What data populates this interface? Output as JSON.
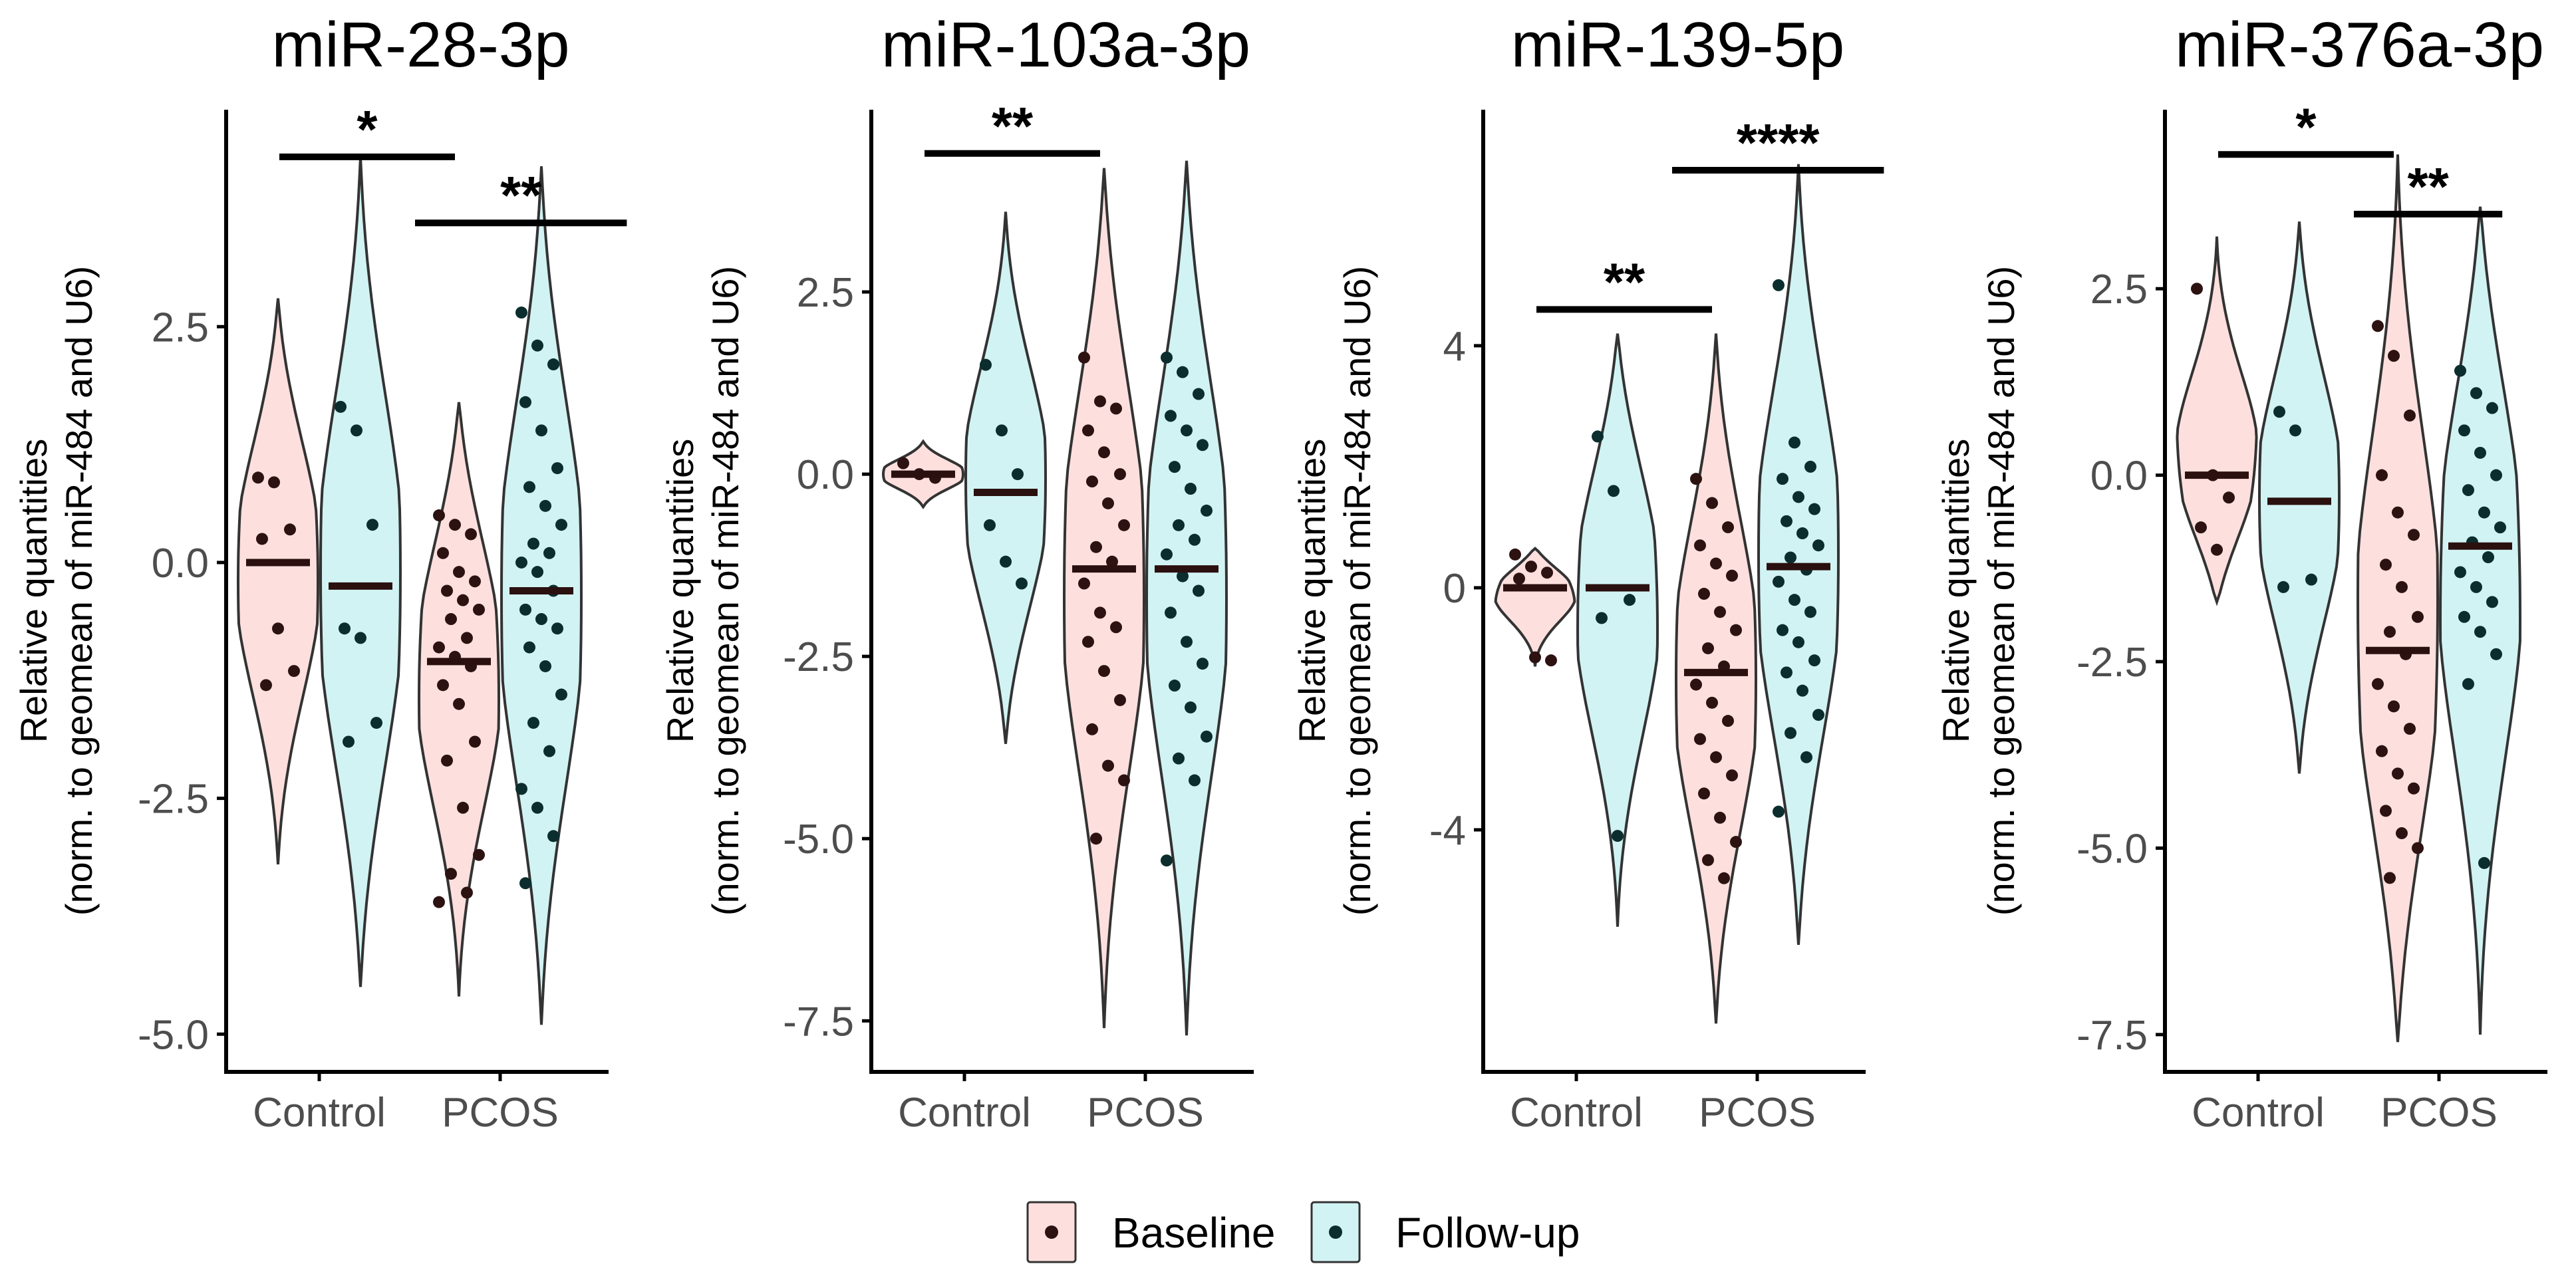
{
  "legend": {
    "items": [
      {
        "label": "Baseline",
        "fill": "#fde0de",
        "dot": "#2d1212"
      },
      {
        "label": "Follow-up",
        "fill": "#d2f3f3",
        "dot": "#0b2d2d"
      }
    ]
  },
  "colors": {
    "baseline_fill": "#fde0de",
    "followup_fill": "#d2f3f3",
    "baseline_dot": "#2d1212",
    "followup_dot": "#0b2d2d",
    "median": "#2b1010"
  },
  "chart_data": [
    {
      "type": "violin",
      "title": "miR-28-3p",
      "ylabel_line1": "Relative quantities",
      "ylabel_line2": "(norm. to geomean of miR-484 and U6)",
      "categories": [
        "Control",
        "PCOS"
      ],
      "ylim": [
        -5.4,
        4.8
      ],
      "yticks": [
        2.5,
        0.0,
        -2.5,
        -5.0
      ],
      "ytick_labels": [
        "2.5",
        "0.0",
        "-2.5",
        "-5.0"
      ],
      "series": [
        {
          "name": "Baseline",
          "groups": [
            {
              "category": "Control",
              "median": 0.0,
              "range": [
                -3.2,
                2.8
              ],
              "points": [
                0.9,
                0.85,
                0.35,
                0.25,
                -0.7,
                -1.15,
                -1.3
              ]
            },
            {
              "category": "PCOS",
              "median": -1.05,
              "range": [
                -4.6,
                1.7
              ],
              "points": [
                0.5,
                0.4,
                0.3,
                0.1,
                -0.1,
                -0.2,
                -0.3,
                -0.4,
                -0.5,
                -0.6,
                -0.8,
                -0.9,
                -1.0,
                -1.1,
                -1.3,
                -1.5,
                -1.9,
                -2.1,
                -2.6,
                -3.1,
                -3.3,
                -3.5,
                -3.6
              ]
            }
          ]
        },
        {
          "name": "Follow-up",
          "groups": [
            {
              "category": "Control",
              "median": -0.25,
              "range": [
                -4.5,
                4.3
              ],
              "points": [
                1.65,
                1.4,
                0.4,
                -0.7,
                -0.8,
                -1.7,
                -1.9
              ]
            },
            {
              "category": "PCOS",
              "median": -0.3,
              "range": [
                -4.9,
                4.2
              ],
              "points": [
                2.65,
                2.3,
                2.1,
                1.7,
                1.4,
                1.0,
                0.8,
                0.6,
                0.4,
                0.2,
                0.1,
                0.0,
                -0.1,
                -0.3,
                -0.5,
                -0.6,
                -0.7,
                -0.9,
                -1.1,
                -1.4,
                -1.7,
                -2.0,
                -2.4,
                -2.6,
                -2.9,
                -3.4
              ]
            }
          ]
        }
      ],
      "significance": [
        {
          "label": "*",
          "x0": 1,
          "x1": 1.75,
          "y": 4.3
        },
        {
          "label": "**",
          "x0": 1.75,
          "x1": 2.7,
          "y": 3.6
        }
      ]
    },
    {
      "type": "violin",
      "title": "miR-103a-3p",
      "ylabel_line1": "Relative quantities",
      "ylabel_line2": "(norm. to geomean of miR-484 and U6)",
      "categories": [
        "Control",
        "PCOS"
      ],
      "ylim": [
        -8.2,
        5.0
      ],
      "yticks": [
        2.5,
        0.0,
        -2.5,
        -5.0,
        -7.5
      ],
      "ytick_labels": [
        "2.5",
        "0.0",
        "-2.5",
        "-5.0",
        "-7.5"
      ],
      "series": [
        {
          "name": "Baseline",
          "groups": [
            {
              "category": "Control",
              "median": 0.0,
              "range": [
                -0.45,
                0.45
              ],
              "points": [
                0.15,
                0.0,
                -0.05
              ]
            },
            {
              "category": "PCOS",
              "median": -1.3,
              "range": [
                -7.6,
                4.2
              ],
              "points": [
                1.6,
                1.0,
                0.9,
                0.6,
                0.3,
                0.0,
                -0.1,
                -0.4,
                -0.7,
                -1.0,
                -1.2,
                -1.5,
                -1.9,
                -2.1,
                -2.3,
                -2.7,
                -3.1,
                -3.5,
                -4.0,
                -4.2,
                -5.0
              ]
            }
          ]
        },
        {
          "name": "Follow-up",
          "groups": [
            {
              "category": "Control",
              "median": -0.25,
              "range": [
                -3.7,
                3.6
              ],
              "points": [
                1.5,
                0.6,
                0.0,
                -0.7,
                -1.2,
                -1.5
              ]
            },
            {
              "category": "PCOS",
              "median": -1.3,
              "range": [
                -7.7,
                4.3
              ],
              "points": [
                1.6,
                1.4,
                1.1,
                0.8,
                0.6,
                0.4,
                0.1,
                -0.2,
                -0.5,
                -0.7,
                -0.9,
                -1.1,
                -1.4,
                -1.6,
                -1.9,
                -2.3,
                -2.6,
                -2.9,
                -3.2,
                -3.6,
                -3.9,
                -4.2,
                -5.3
              ]
            }
          ]
        }
      ],
      "significance": [
        {
          "label": "**",
          "x0": 1,
          "x1": 1.75,
          "y": 4.4
        }
      ]
    },
    {
      "type": "violin",
      "title": "miR-139-5p",
      "ylabel_line1": "Relative quantities",
      "ylabel_line2": "(norm. to geomean of miR-484 and U6)",
      "categories": [
        "Control",
        "PCOS"
      ],
      "ylim": [
        -8.0,
        7.9
      ],
      "yticks": [
        4,
        0,
        -4
      ],
      "ytick_labels": [
        "4",
        "0",
        "-4"
      ],
      "series": [
        {
          "name": "Baseline",
          "groups": [
            {
              "category": "Control",
              "median": 0.0,
              "range": [
                -1.3,
                0.65
              ],
              "points": [
                0.55,
                0.35,
                0.25,
                0.15,
                -1.15,
                -1.2
              ]
            },
            {
              "category": "PCOS",
              "median": -1.4,
              "range": [
                -7.2,
                4.2
              ],
              "points": [
                1.8,
                1.4,
                1.0,
                0.7,
                0.4,
                0.2,
                -0.1,
                -0.4,
                -0.7,
                -1.0,
                -1.3,
                -1.6,
                -1.9,
                -2.2,
                -2.5,
                -2.8,
                -3.1,
                -3.4,
                -3.8,
                -4.2,
                -4.5,
                -4.8
              ]
            }
          ]
        },
        {
          "name": "Follow-up",
          "groups": [
            {
              "category": "Control",
              "median": 0.0,
              "range": [
                -5.6,
                4.2
              ],
              "points": [
                2.5,
                1.6,
                -0.2,
                -0.5,
                -4.1
              ]
            },
            {
              "category": "PCOS",
              "median": 0.35,
              "range": [
                -5.9,
                7.0
              ],
              "points": [
                5.0,
                2.4,
                2.0,
                1.8,
                1.5,
                1.3,
                1.1,
                0.9,
                0.7,
                0.5,
                0.3,
                0.1,
                -0.2,
                -0.4,
                -0.7,
                -0.9,
                -1.2,
                -1.4,
                -1.7,
                -2.1,
                -2.4,
                -2.8,
                -3.7
              ]
            }
          ]
        }
      ],
      "significance": [
        {
          "label": "**",
          "x0": 1,
          "x1": 1.75,
          "y": 4.6
        },
        {
          "label": "****",
          "x0": 1.75,
          "x1": 2.7,
          "y": 6.9
        }
      ]
    },
    {
      "type": "violin",
      "title": "miR-376a-3p",
      "ylabel_line1": "Relative quantities",
      "ylabel_line2": "(norm. to geomean of miR-484 and U6)",
      "categories": [
        "Control",
        "PCOS"
      ],
      "ylim": [
        -8.0,
        4.9
      ],
      "yticks": [
        2.5,
        0.0,
        -2.5,
        -5.0,
        -7.5
      ],
      "ytick_labels": [
        "2.5",
        "0.0",
        "-2.5",
        "-5.0",
        "-7.5"
      ],
      "series": [
        {
          "name": "Baseline",
          "groups": [
            {
              "category": "Control",
              "median": 0.0,
              "range": [
                -1.7,
                3.2
              ],
              "points": [
                2.5,
                0.0,
                -0.3,
                -0.7,
                -1.0
              ]
            },
            {
              "category": "PCOS",
              "median": -2.35,
              "range": [
                -7.6,
                4.3
              ],
              "points": [
                2.0,
                1.6,
                0.8,
                0.0,
                -0.5,
                -0.8,
                -1.2,
                -1.5,
                -1.9,
                -2.1,
                -2.4,
                -2.8,
                -3.1,
                -3.4,
                -3.7,
                -4.0,
                -4.2,
                -4.5,
                -4.8,
                -5.0,
                -5.4
              ]
            }
          ]
        },
        {
          "name": "Follow-up",
          "groups": [
            {
              "category": "Control",
              "median": -0.35,
              "range": [
                -4.0,
                3.4
              ],
              "points": [
                0.85,
                0.6,
                -1.4,
                -1.5
              ]
            },
            {
              "category": "PCOS",
              "median": -0.95,
              "range": [
                -7.5,
                3.6
              ],
              "points": [
                1.4,
                1.1,
                0.9,
                0.6,
                0.3,
                0.0,
                -0.2,
                -0.5,
                -0.7,
                -0.9,
                -1.1,
                -1.3,
                -1.5,
                -1.7,
                -1.9,
                -2.1,
                -2.4,
                -2.8,
                -5.2
              ]
            }
          ]
        }
      ],
      "significance": [
        {
          "label": "*",
          "x0": 1,
          "x1": 1.75,
          "y": 4.3
        },
        {
          "label": "**",
          "x0": 1.75,
          "x1": 2.35,
          "y": 3.5
        }
      ]
    }
  ]
}
